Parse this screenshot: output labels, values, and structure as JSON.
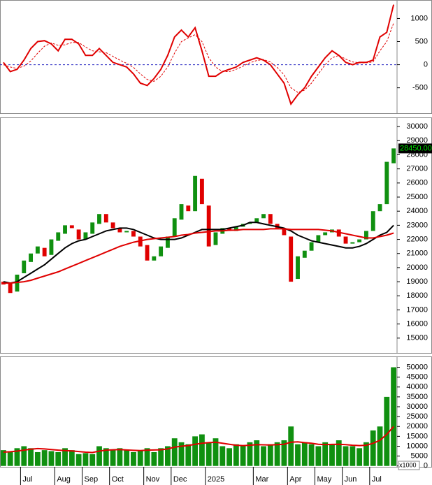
{
  "chart_data": [
    {
      "type": "line",
      "series": [
        {
          "color": "#e00000",
          "values": [
            50,
            -150,
            -100,
            100,
            350,
            500,
            520,
            450,
            300,
            550,
            550,
            450,
            200,
            200,
            350,
            200,
            50,
            0,
            -50,
            -200,
            -400,
            -450,
            -300,
            -100,
            200,
            600,
            750,
            600,
            800,
            300,
            -250,
            -250,
            -150,
            -100,
            -50,
            50,
            100,
            150,
            100,
            0,
            -200,
            -400,
            -850,
            -650,
            -500,
            -250,
            -50,
            150,
            300,
            200,
            50,
            0,
            50,
            50,
            100,
            600,
            700,
            1300
          ]
        },
        {
          "color": "#e00000",
          "dashed": true,
          "values": [
            0,
            -50,
            -80,
            -30,
            80,
            250,
            400,
            470,
            420,
            430,
            480,
            480,
            380,
            300,
            280,
            260,
            180,
            100,
            30,
            -60,
            -200,
            -320,
            -360,
            -250,
            -50,
            250,
            500,
            580,
            650,
            500,
            150,
            -50,
            -150,
            -150,
            -100,
            -30,
            40,
            90,
            110,
            60,
            -60,
            -220,
            -500,
            -600,
            -550,
            -400,
            -200,
            0,
            150,
            200,
            120,
            60,
            40,
            40,
            60,
            300,
            500,
            900
          ]
        }
      ],
      "ylim": [
        -1050,
        1400
      ],
      "yticks": [
        -500,
        0,
        500,
        1000
      ],
      "zero_line_color": "#2020c0"
    },
    {
      "type": "candlestick",
      "open": [
        19000,
        18900,
        18300,
        19600,
        20400,
        21000,
        21400,
        20900,
        21900,
        22400,
        23000,
        22700,
        22000,
        22400,
        23100,
        23800,
        23200,
        22800,
        22500,
        22600,
        22200,
        21600,
        20500,
        20800,
        21400,
        22200,
        23400,
        24400,
        24000,
        26300,
        24400,
        21600,
        22400,
        22800,
        22600,
        22900,
        23100,
        23200,
        23500,
        23800,
        23100,
        22800,
        22200,
        19200,
        20700,
        21200,
        21800,
        22300,
        22500,
        22700,
        22200,
        21700,
        21800,
        22000,
        22600,
        24000,
        24500,
        27400
      ],
      "close": [
        18800,
        18200,
        19500,
        20500,
        21000,
        21500,
        20800,
        22000,
        22500,
        23000,
        22800,
        22000,
        22500,
        23200,
        23800,
        23200,
        22800,
        22500,
        22600,
        22200,
        21500,
        20500,
        20800,
        21500,
        22200,
        23500,
        24500,
        24000,
        26500,
        24500,
        21500,
        22500,
        22800,
        22600,
        22900,
        23100,
        23200,
        23500,
        23800,
        23100,
        22800,
        22300,
        19000,
        20800,
        21200,
        21800,
        22300,
        22500,
        22700,
        22200,
        21700,
        21800,
        22000,
        22600,
        24000,
        24500,
        27500,
        28450
      ],
      "up_color": "#109010",
      "down_color": "#e00000",
      "series": [
        {
          "color": "#000000",
          "values": [
            19000,
            18900,
            19000,
            19300,
            19600,
            19900,
            20200,
            20600,
            21000,
            21400,
            21700,
            21900,
            22000,
            22200,
            22400,
            22600,
            22700,
            22800,
            22800,
            22700,
            22500,
            22300,
            22100,
            22000,
            22000,
            22000,
            22100,
            22300,
            22500,
            22700,
            22700,
            22700,
            22700,
            22800,
            22900,
            23000,
            23200,
            23200,
            23100,
            23000,
            22900,
            22800,
            22600,
            22300,
            22100,
            21900,
            21800,
            21700,
            21600,
            21500,
            21400,
            21400,
            21500,
            21700,
            22000,
            22300,
            22500,
            23000
          ]
        },
        {
          "color": "#e00000",
          "values": [
            18900,
            18900,
            18950,
            19000,
            19100,
            19250,
            19400,
            19550,
            19700,
            19900,
            20100,
            20300,
            20500,
            20700,
            20900,
            21100,
            21300,
            21500,
            21650,
            21800,
            21900,
            22000,
            22050,
            22100,
            22150,
            22200,
            22300,
            22350,
            22450,
            22500,
            22550,
            22600,
            22600,
            22650,
            22650,
            22700,
            22700,
            22700,
            22700,
            22750,
            22750,
            22750,
            22700,
            22700,
            22700,
            22700,
            22700,
            22650,
            22600,
            22500,
            22400,
            22300,
            22200,
            22100,
            22100,
            22200,
            22300,
            22450
          ]
        }
      ],
      "last_price": {
        "value": 28450,
        "label": "28450.00"
      },
      "ylim": [
        13950,
        30650
      ],
      "yticks": [
        15000,
        16000,
        17000,
        18000,
        19000,
        20000,
        21000,
        22000,
        23000,
        24000,
        25000,
        26000,
        27000,
        28000,
        29000,
        30000
      ]
    },
    {
      "type": "bar",
      "categories": [
        null,
        null,
        null,
        "Jul",
        null,
        null,
        null,
        null,
        "Aug",
        null,
        null,
        null,
        "Sep",
        null,
        null,
        null,
        "Oct",
        null,
        null,
        null,
        null,
        "Nov",
        null,
        null,
        null,
        "Dec",
        null,
        null,
        null,
        null,
        "2025",
        null,
        null,
        null,
        null,
        null,
        null,
        "Mar",
        null,
        null,
        null,
        null,
        "Apr",
        null,
        null,
        null,
        "May",
        null,
        null,
        null,
        "Jun",
        null,
        null,
        null,
        "Jul",
        null,
        null,
        null
      ],
      "values": [
        8000,
        7000,
        9000,
        10000,
        9000,
        7000,
        8000,
        7500,
        7000,
        9000,
        8000,
        6000,
        6500,
        6000,
        10000,
        9000,
        8000,
        9000,
        8000,
        7000,
        8000,
        9000,
        7000,
        9000,
        10000,
        14000,
        12000,
        11000,
        15000,
        16000,
        12000,
        14000,
        10000,
        9000,
        11000,
        10000,
        12000,
        13000,
        10000,
        11000,
        12000,
        13000,
        20000,
        11000,
        12000,
        11000,
        10000,
        12000,
        11000,
        13000,
        10000,
        10000,
        9000,
        12000,
        18000,
        20000,
        35000,
        50000
      ],
      "color": "#109010",
      "series": [
        {
          "color": "#e00000",
          "values": [
            7000,
            7200,
            7500,
            8000,
            8500,
            8800,
            8600,
            8300,
            8000,
            7800,
            7600,
            7300,
            7000,
            6800,
            7500,
            8000,
            8200,
            8300,
            8100,
            7900,
            7800,
            8000,
            8100,
            8200,
            8600,
            9500,
            10000,
            10300,
            11000,
            11500,
            11800,
            12000,
            11500,
            11000,
            10500,
            10300,
            10500,
            10800,
            10700,
            10600,
            10800,
            11000,
            12000,
            12200,
            11800,
            11500,
            11000,
            10800,
            10900,
            11000,
            10800,
            10500,
            10300,
            10500,
            11500,
            13000,
            16000,
            20000
          ]
        }
      ],
      "unit_label": "x1000",
      "ylim": [
        -450,
        55500
      ],
      "yticks": [
        0,
        5000,
        10000,
        15000,
        20000,
        25000,
        30000,
        35000,
        40000,
        45000,
        50000
      ]
    }
  ]
}
